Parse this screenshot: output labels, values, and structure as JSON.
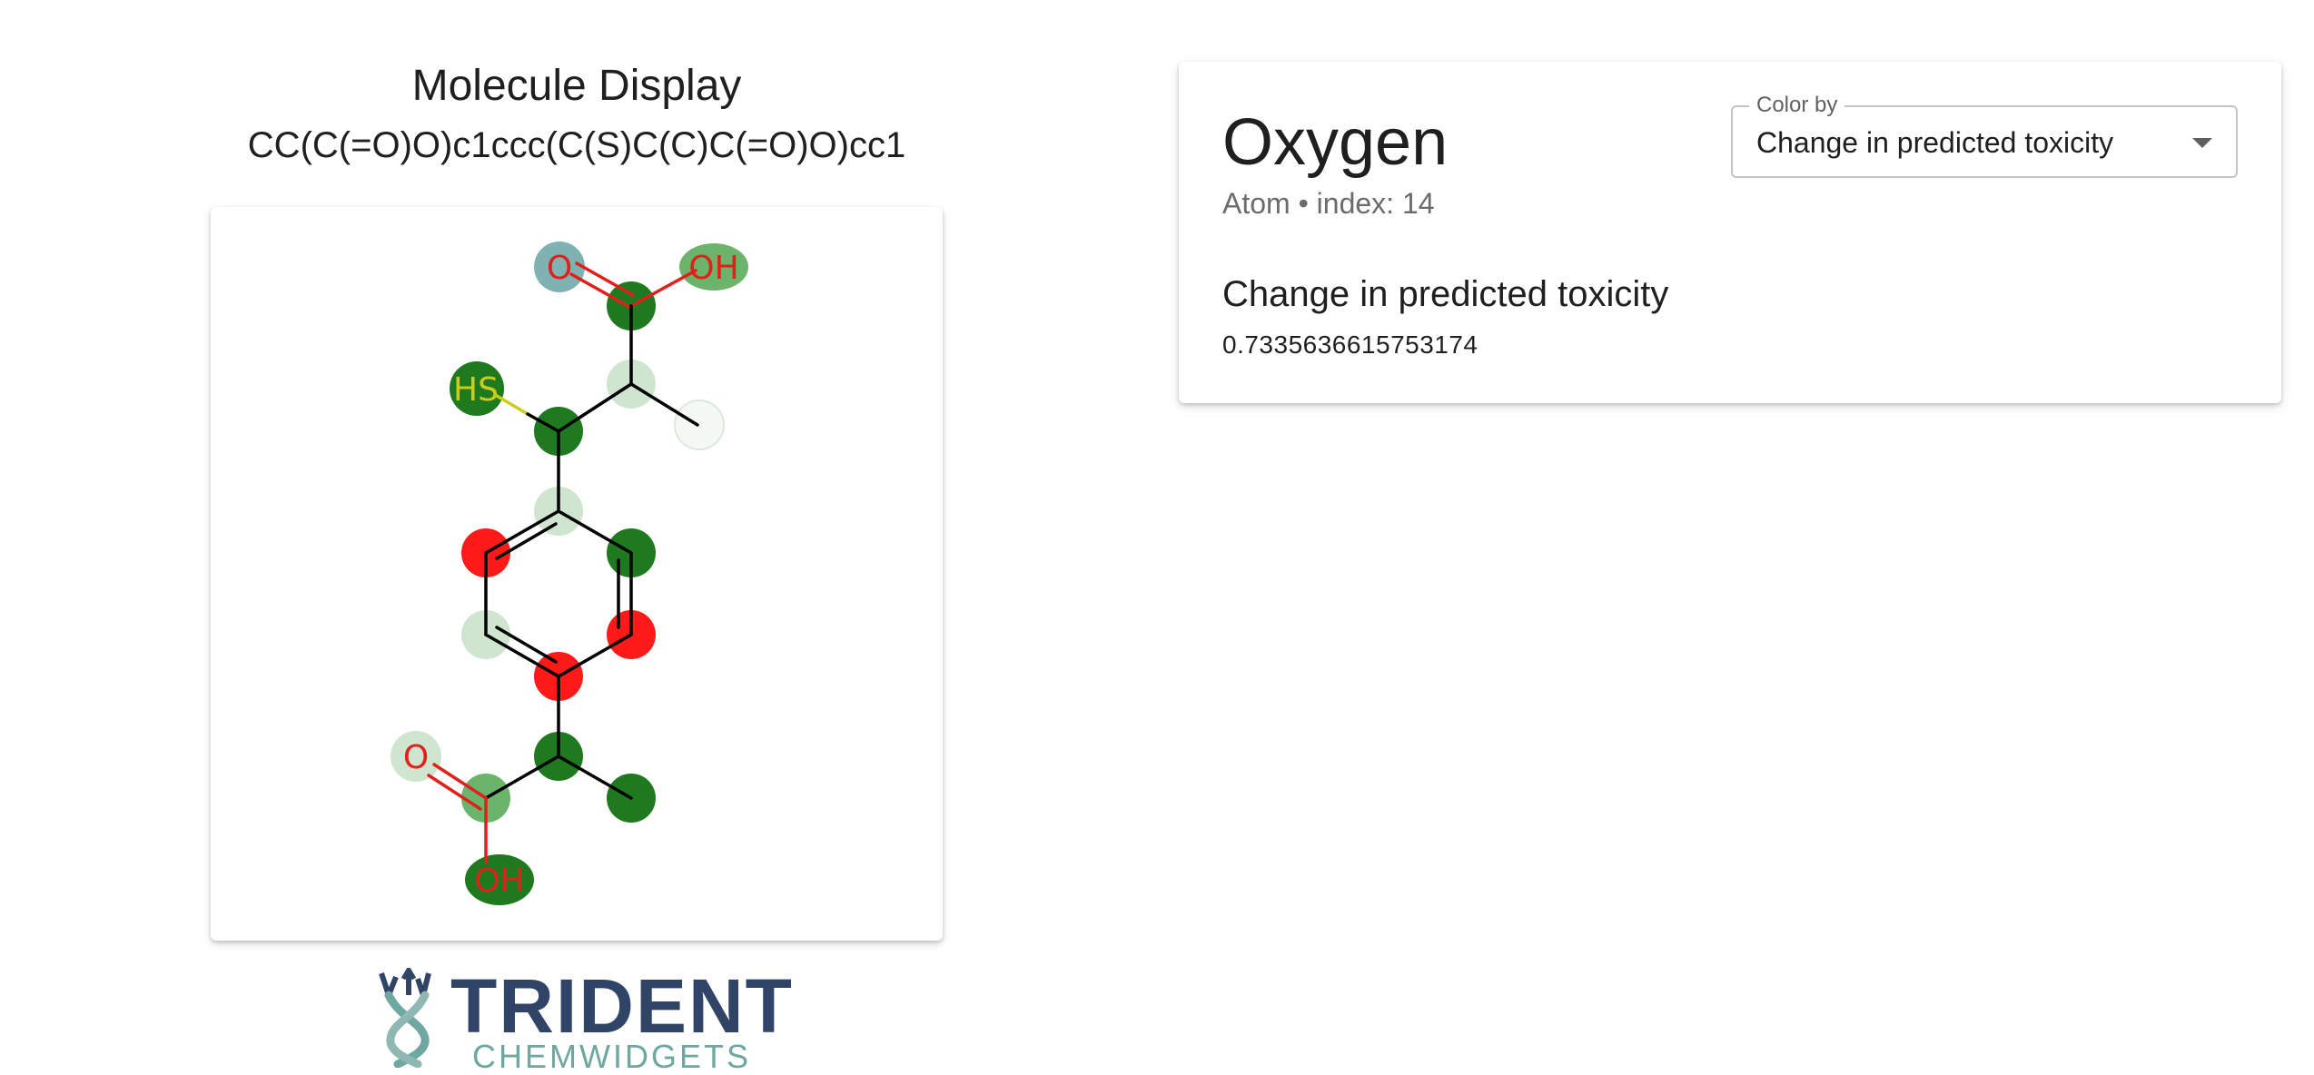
{
  "molecule": {
    "title": "Molecule Display",
    "smiles": "CC(C(=O)O)c1ccc(C(S)C(C)C(=O)O)cc1",
    "atom_labels": {
      "o_top": "O",
      "oh_top": "OH",
      "hs": "HS",
      "o_bottom": "O",
      "oh_bottom": "OH"
    },
    "colors": {
      "positive": "#1f7a1f",
      "negative": "#ff1a1a",
      "selected": "#7fb3b3",
      "oxygen_text": "#e0201a",
      "sulfur_text": "#cccc1a",
      "bond": "#000000"
    }
  },
  "logo": {
    "name": "TRIDENT",
    "subname": "CHEMWIDGETS"
  },
  "atom_info": {
    "name": "Oxygen",
    "meta": "Atom • index: 14",
    "property_label": "Change in predicted toxicity",
    "property_value": "0.7335636615753174"
  },
  "color_by": {
    "label": "Color by",
    "selected": "Change in predicted toxicity"
  }
}
